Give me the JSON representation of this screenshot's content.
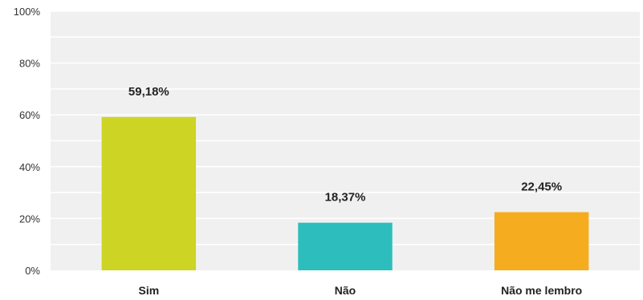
{
  "chart_data": {
    "type": "bar",
    "categories": [
      "Sim",
      "Não",
      "Não me lembro"
    ],
    "values": [
      59.18,
      18.37,
      22.45
    ],
    "data_labels": [
      "59,18%",
      "18,37%",
      "22,45%"
    ],
    "colors": [
      "#cdd424",
      "#2ebdbd",
      "#f5ac1e"
    ],
    "ylim": [
      0,
      100
    ],
    "yticks": [
      0,
      20,
      40,
      60,
      80,
      100
    ],
    "ytick_labels": [
      "0%",
      "20%",
      "40%",
      "60%",
      "80%",
      "100%"
    ],
    "grid": true,
    "plot_background": "#f0f0f0",
    "grid_color": "#ffffff",
    "title": "",
    "xlabel": "",
    "ylabel": ""
  }
}
